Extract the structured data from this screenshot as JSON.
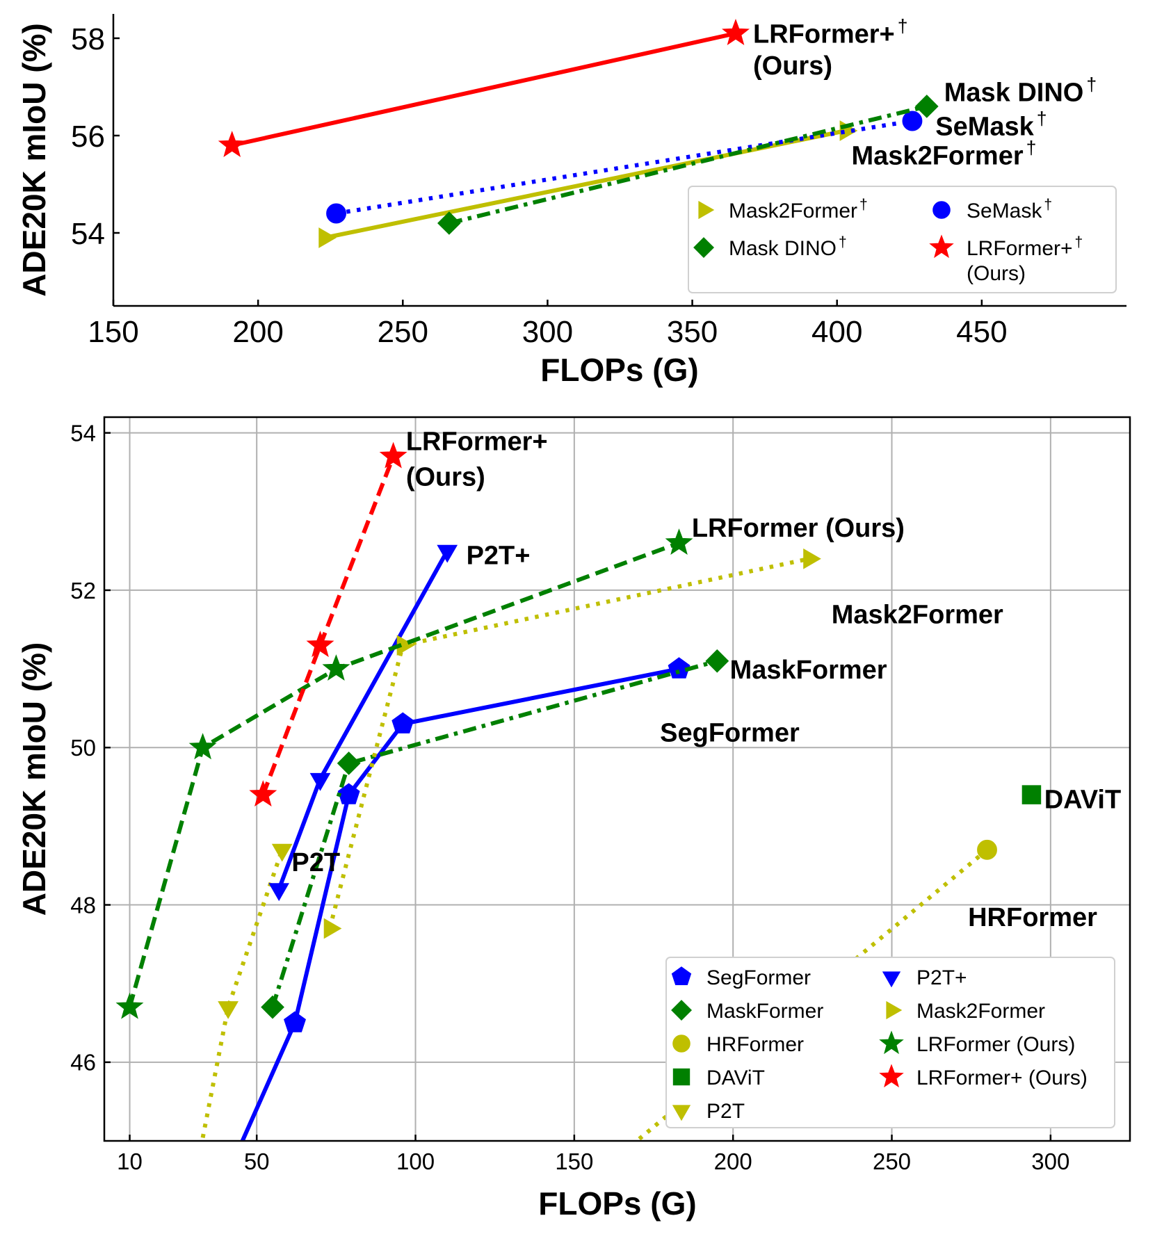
{
  "colors": {
    "red": "#ff0000",
    "blue": "#0000ff",
    "green": "#008000",
    "olive": "#bfbf00"
  },
  "chart_data": [
    {
      "type": "line",
      "xlabel": "FLOPs (G)",
      "ylabel": "ADE20K mIoU (%)",
      "xlim": [
        150,
        500
      ],
      "ylim": [
        52.5,
        58.5
      ],
      "xticks": [
        "150",
        "200",
        "250",
        "300",
        "350",
        "400",
        "450"
      ],
      "yticks": [
        "54",
        "56",
        "58"
      ],
      "grid": false,
      "legend": {
        "position": "lower-right",
        "columns": 2,
        "entries": [
          {
            "series": 1,
            "label": "Mask2Former",
            "sup": "†"
          },
          {
            "series": 2,
            "label": "SeMask",
            "sup": "†"
          },
          {
            "series": 3,
            "label": "Mask DINO",
            "sup": "†"
          },
          {
            "series": 0,
            "label": "LRFormer+",
            "sup": "†",
            "label2": "(Ours)"
          }
        ]
      },
      "series": [
        {
          "name": "LRFormer+† (Ours)",
          "color": "red",
          "linestyle": "solid",
          "marker": "star",
          "x": [
            191,
            365
          ],
          "y": [
            55.8,
            58.1
          ]
        },
        {
          "name": "Mask2Former†",
          "color": "olive",
          "linestyle": "solid",
          "marker": "triangle-right",
          "x": [
            223,
            403
          ],
          "y": [
            53.9,
            56.1
          ]
        },
        {
          "name": "SeMask†",
          "color": "blue",
          "linestyle": "dotted",
          "marker": "circle",
          "x": [
            227,
            426
          ],
          "y": [
            54.4,
            56.3
          ]
        },
        {
          "name": "Mask DINO†",
          "color": "green",
          "linestyle": "dashdot",
          "marker": "diamond",
          "x": [
            266,
            431
          ],
          "y": [
            54.2,
            56.6
          ]
        }
      ],
      "annotations": [
        {
          "text": "LRFormer+",
          "sup": "†",
          "x": 371,
          "y": 58.1
        },
        {
          "text": "(Ours)",
          "x": 371,
          "y": 57.45
        },
        {
          "text": "Mask DINO",
          "sup": "†",
          "x": 437,
          "y": 56.9
        },
        {
          "text": "SeMask",
          "sup": "†",
          "x": 434,
          "y": 56.2
        },
        {
          "text": "Mask2Former",
          "sup": "†",
          "x": 405,
          "y": 55.6
        }
      ]
    },
    {
      "type": "line",
      "xlabel": "FLOPs (G)",
      "ylabel": "ADE20K mIoU (%)",
      "xlim": [
        2,
        325
      ],
      "ylim": [
        45,
        54.2
      ],
      "xticks": [
        {
          "v": 10,
          "label": "10"
        },
        {
          "v": 50,
          "label": "50"
        },
        {
          "v": 100,
          "label": "100"
        },
        {
          "v": 150,
          "label": "150"
        },
        {
          "v": 200,
          "label": "200"
        },
        {
          "v": 250,
          "label": "250"
        },
        {
          "v": 300,
          "label": "300"
        }
      ],
      "yticks": [
        "46",
        "48",
        "50",
        "52",
        "54"
      ],
      "grid": true,
      "legend": {
        "position": "lower-right",
        "columns": 2,
        "entries": [
          {
            "series": 0,
            "label": "SegFormer"
          },
          {
            "series": 3,
            "label": "P2T+"
          },
          {
            "series": 1,
            "label": "MaskFormer"
          },
          {
            "series": 4,
            "label": "Mask2Former"
          },
          {
            "series": 5,
            "label": "HRFormer"
          },
          {
            "series": 6,
            "label": "LRFormer (Ours)"
          },
          {
            "series": 8,
            "label": "DAViT"
          },
          {
            "series": 7,
            "label": "LRFormer+ (Ours)"
          },
          {
            "series": 2,
            "label": "P2T"
          }
        ]
      },
      "series": [
        {
          "name": "SegFormer",
          "color": "blue",
          "linestyle": "solid",
          "marker": "pentagon",
          "x": [
            40,
            62,
            79,
            96,
            183
          ],
          "y": [
            44.5,
            46.5,
            49.4,
            50.3,
            51.0
          ]
        },
        {
          "name": "MaskFormer",
          "color": "green",
          "linestyle": "dashdot",
          "marker": "diamond",
          "x": [
            55,
            79,
            195
          ],
          "y": [
            46.7,
            49.8,
            51.1
          ]
        },
        {
          "name": "P2T",
          "color": "olive",
          "linestyle": "dotted",
          "marker": "triangle-down",
          "x": [
            28,
            41,
            58
          ],
          "y": [
            44.0,
            46.7,
            48.7
          ]
        },
        {
          "name": "P2T+",
          "color": "blue",
          "linestyle": "solid",
          "marker": "triangle-down",
          "x": [
            57,
            70,
            110
          ],
          "y": [
            48.2,
            49.6,
            52.5
          ]
        },
        {
          "name": "Mask2Former",
          "color": "olive",
          "linestyle": "dotted",
          "marker": "triangle-right",
          "x": [
            73,
            96,
            224
          ],
          "y": [
            47.7,
            51.3,
            52.4
          ]
        },
        {
          "name": "HRFormer",
          "color": "olive",
          "linestyle": "dotted",
          "marker": "circle",
          "x": [
            125,
            280
          ],
          "y": [
            43.5,
            48.7
          ]
        },
        {
          "name": "LRFormer (Ours)",
          "color": "green",
          "linestyle": "dashed",
          "marker": "star",
          "x": [
            10,
            33,
            75,
            183
          ],
          "y": [
            46.7,
            50.0,
            51.0,
            52.6
          ]
        },
        {
          "name": "LRFormer+ (Ours)",
          "color": "red",
          "linestyle": "dashed",
          "marker": "star",
          "x": [
            52,
            70,
            93
          ],
          "y": [
            49.4,
            51.3,
            53.7
          ]
        },
        {
          "name": "DAViT",
          "color": "green",
          "linestyle": "none",
          "marker": "square",
          "x": [
            294
          ],
          "y": [
            49.4
          ]
        }
      ],
      "annotations": [
        {
          "text": "LRFormer+",
          "x": 97,
          "y": 53.9
        },
        {
          "text": "(Ours)",
          "x": 97,
          "y": 53.45
        },
        {
          "text": "LRFormer (Ours)",
          "x": 187,
          "y": 52.8
        },
        {
          "text": "P2T+",
          "x": 116,
          "y": 52.45
        },
        {
          "text": "Mask2Former",
          "x": 231,
          "y": 51.7
        },
        {
          "text": "MaskFormer",
          "x": 199,
          "y": 51.0
        },
        {
          "text": "SegFormer",
          "x": 177,
          "y": 50.2
        },
        {
          "text": "DAViT",
          "x": 298,
          "y": 49.35
        },
        {
          "text": "P2T",
          "x": 61,
          "y": 48.55
        },
        {
          "text": "HRFormer",
          "x": 274,
          "y": 47.85
        }
      ]
    }
  ]
}
